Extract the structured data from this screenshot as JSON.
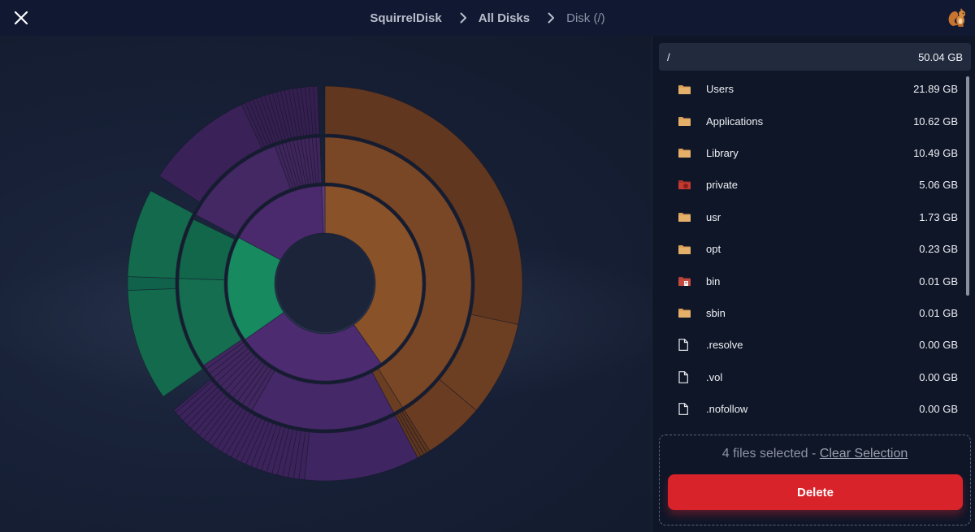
{
  "header": {
    "breadcrumbs": [
      {
        "label": "SquirrelDisk"
      },
      {
        "label": "All Disks"
      },
      {
        "label": "Disk (/)"
      }
    ],
    "close_icon": "close-icon",
    "logo_icon": "squirrel-logo-icon"
  },
  "sidebar": {
    "root": {
      "name": "/",
      "size": "50.04 GB"
    },
    "items": [
      {
        "name": "Users",
        "size": "21.89 GB",
        "icon": "folder-icon"
      },
      {
        "name": "Applications",
        "size": "10.62 GB",
        "icon": "folder-icon"
      },
      {
        "name": "Library",
        "size": "10.49 GB",
        "icon": "folder-icon"
      },
      {
        "name": "private",
        "size": "5.06 GB",
        "icon": "folder-private-icon"
      },
      {
        "name": "usr",
        "size": "1.73 GB",
        "icon": "folder-icon"
      },
      {
        "name": "opt",
        "size": "0.23 GB",
        "icon": "folder-icon"
      },
      {
        "name": "bin",
        "size": "0.01 GB",
        "icon": "folder-bin-icon"
      },
      {
        "name": "sbin",
        "size": "0.01 GB",
        "icon": "folder-icon"
      },
      {
        "name": ".resolve",
        "size": "0.00 GB",
        "icon": "file-icon"
      },
      {
        "name": ".vol",
        "size": "0.00 GB",
        "icon": "file-icon"
      },
      {
        "name": ".nofollow",
        "size": "0.00 GB",
        "icon": "file-icon"
      }
    ]
  },
  "selection": {
    "count_text": "4 files selected - ",
    "clear_label": "Clear Selection",
    "delete_label": "Delete"
  },
  "colors": {
    "orange": "#8a5229",
    "purple": "#4a2b6e",
    "green": "#178a60",
    "danger": "#d8232a"
  },
  "sunburst": {
    "segments": [
      {
        "name": "Users",
        "value": 21.89
      },
      {
        "name": "Applications",
        "value": 10.62
      },
      {
        "name": "Library",
        "value": 10.49
      }
    ]
  }
}
